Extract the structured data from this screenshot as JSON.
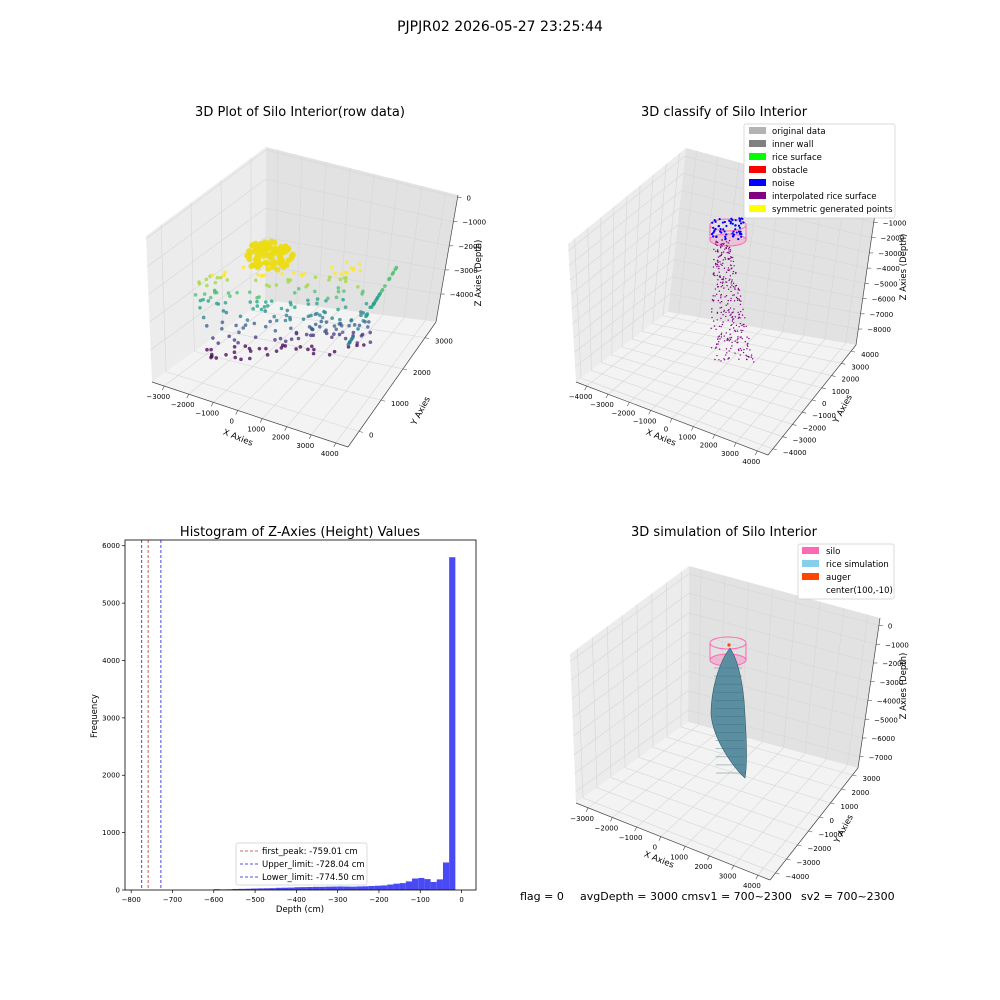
{
  "figure": {
    "suptitle": "PJPJR02 2026-05-27 23:25:44",
    "footer": {
      "flag": "flag = 0",
      "avg": "avgDepth = 3000 cmsv1 = 700~2300",
      "sv2": "sv2 = 700~2300"
    }
  },
  "colors": {
    "pane_left": "#ececec",
    "pane_right": "#e2e2e2",
    "pane_floor": "#f3f3f3",
    "grid": "#d6d6d6",
    "hist_bar": "#4a4af5",
    "peak_line": "#c0392b",
    "limit_line": "#1a1ad6"
  },
  "chart_data": [
    {
      "type": "scatter3d",
      "title": "3D Plot of Silo Interior(row data)",
      "xlabel": "X Axies",
      "ylabel": "Y Axies",
      "zlabel": "Z Axies (Depth)",
      "xticks": [
        "−3000",
        "−2000",
        "−1000",
        "0",
        "1000",
        "2000",
        "3000",
        "4000"
      ],
      "yticks": [
        "0",
        "1000",
        "2000",
        "3000"
      ],
      "zticks": [
        "0",
        "−1000",
        "−2000",
        "−3000",
        "−4000"
      ],
      "colormap": "viridis"
    },
    {
      "type": "scatter3d",
      "title": "3D classify of Silo Interior",
      "xlabel": "X Axies",
      "ylabel": "Y Axies",
      "zlabel": "Z Axies (Depth)",
      "xticks": [
        "−4000",
        "−3000",
        "−2000",
        "−1000",
        "0",
        "1000",
        "2000",
        "3000",
        "4000"
      ],
      "yticks": [
        "−4000",
        "−3000",
        "−2000",
        "−1000",
        "0",
        "1000",
        "2000",
        "3000",
        "4000"
      ],
      "zticks": [
        "0",
        "−1000",
        "−2000",
        "−3000",
        "−4000",
        "−5000",
        "−6000",
        "−7000",
        "−8000"
      ],
      "legend": [
        {
          "label": "original data",
          "color": "#b3b3b3"
        },
        {
          "label": "inner wall",
          "color": "#808080"
        },
        {
          "label": "rice surface",
          "color": "#00ff00"
        },
        {
          "label": "obstacle",
          "color": "#ff0000"
        },
        {
          "label": "noise",
          "color": "#0000ff"
        },
        {
          "label": "interpolated rice surface",
          "color": "#800080"
        },
        {
          "label": "symmetric generated points",
          "color": "#ffff00"
        }
      ]
    },
    {
      "type": "bar",
      "title": "Histogram of Z-Axies (Height) Values",
      "xlabel": "Depth (cm)",
      "ylabel": "Frequency",
      "xlim": [
        -815,
        35
      ],
      "ylim": [
        0,
        6100
      ],
      "xticks": [
        "−800",
        "−700",
        "−600",
        "−500",
        "−400",
        "−300",
        "−200",
        "−100",
        "0"
      ],
      "yticks": [
        "0",
        "1000",
        "2000",
        "3000",
        "4000",
        "5000",
        "6000"
      ],
      "bin_width": 15,
      "bins": [
        [
          -600,
          15
        ],
        [
          -585,
          10
        ],
        [
          -570,
          12
        ],
        [
          -555,
          18
        ],
        [
          -540,
          20
        ],
        [
          -525,
          22
        ],
        [
          -510,
          25
        ],
        [
          -495,
          28
        ],
        [
          -480,
          30
        ],
        [
          -465,
          32
        ],
        [
          -450,
          38
        ],
        [
          -435,
          40
        ],
        [
          -420,
          42
        ],
        [
          -405,
          48
        ],
        [
          -390,
          50
        ],
        [
          -375,
          52
        ],
        [
          -360,
          55
        ],
        [
          -345,
          55
        ],
        [
          -330,
          58
        ],
        [
          -315,
          60
        ],
        [
          -300,
          62
        ],
        [
          -285,
          60
        ],
        [
          -270,
          58
        ],
        [
          -255,
          62
        ],
        [
          -240,
          65
        ],
        [
          -225,
          70
        ],
        [
          -210,
          75
        ],
        [
          -195,
          80
        ],
        [
          -180,
          95
        ],
        [
          -165,
          110
        ],
        [
          -150,
          120
        ],
        [
          -135,
          150
        ],
        [
          -120,
          200
        ],
        [
          -105,
          210
        ],
        [
          -90,
          190
        ],
        [
          -75,
          140
        ],
        [
          -60,
          185
        ],
        [
          -45,
          480
        ],
        [
          -30,
          5800
        ]
      ],
      "vlines": [
        {
          "x": -759.01,
          "style": "peak"
        },
        {
          "x": -728.04,
          "style": "limit"
        },
        {
          "x": -774.5,
          "style": "limit"
        }
      ],
      "legend": [
        {
          "label": "first_peak: -759.01 cm",
          "style": "peak"
        },
        {
          "label": "Upper_limit: -728.04 cm",
          "style": "limit"
        },
        {
          "label": "Lower_limit: -774.50 cm",
          "style": "limit"
        }
      ]
    },
    {
      "type": "surface3d",
      "title": "3D simulation of Silo Interior",
      "xlabel": "X Axies",
      "ylabel": "Y Axies",
      "zlabel": "Z Axies (Depth)",
      "xticks": [
        "−3000",
        "−2000",
        "−1000",
        "0",
        "1000",
        "2000",
        "3000",
        "4000"
      ],
      "yticks": [
        "−4000",
        "−3000",
        "−2000",
        "−1000",
        "0",
        "1000",
        "2000",
        "3000"
      ],
      "zticks": [
        "0",
        "−1000",
        "−2000",
        "−3000",
        "−4000",
        "−5000",
        "−6000",
        "−7000"
      ],
      "legend": [
        {
          "label": "silo",
          "color": "#ff69b4"
        },
        {
          "label": "rice simulation",
          "color": "#87ceeb"
        },
        {
          "label": "auger",
          "color": "#ff4500"
        },
        {
          "label": "center(100,-10)",
          "color": ""
        }
      ]
    }
  ]
}
